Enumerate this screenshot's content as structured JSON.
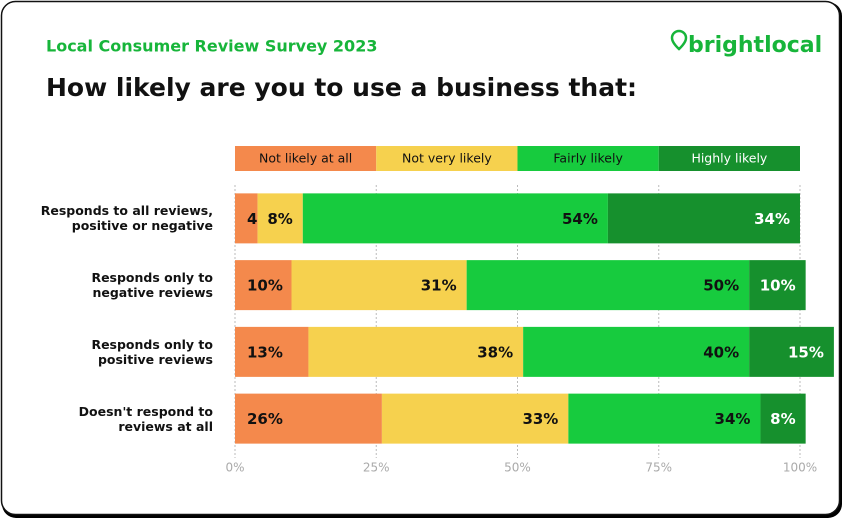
{
  "chart_data": {
    "type": "stacked-bar-horizontal",
    "header": "Local Consumer Review Survey 2023",
    "logo": "brightlocal",
    "title": "How likely are you to use a business that:",
    "categories": [
      "Responds to all reviews,\npositive or negative",
      "Responds only to\nnegative reviews",
      "Responds only to\npositive reviews",
      "Doesn't respond to\nreviews at all"
    ],
    "series": [
      {
        "name": "Not likely at all",
        "color": "#f4894c",
        "values": [
          4,
          10,
          13,
          26
        ],
        "value_labels": [
          "4%",
          "10%",
          "13%",
          "26%"
        ]
      },
      {
        "name": "Not very likely",
        "color": "#f6d14e",
        "values": [
          8,
          31,
          38,
          33
        ],
        "value_labels": [
          "8%",
          "31%",
          "38%",
          "33%"
        ]
      },
      {
        "name": "Fairly likely",
        "color": "#17cb3e",
        "values": [
          54,
          50,
          40,
          34
        ],
        "value_labels": [
          "54%",
          "50%",
          "40%",
          "34%"
        ]
      },
      {
        "name": "Highly likely",
        "color": "#16902d",
        "values": [
          34,
          10,
          15,
          8
        ],
        "value_labels": [
          "34%",
          "10%",
          "15%",
          "8%"
        ]
      }
    ],
    "xlim": [
      0,
      100
    ],
    "xticks": [
      {
        "value": 0,
        "label": "0%"
      },
      {
        "value": 25,
        "label": "25%"
      },
      {
        "value": 50,
        "label": "50%"
      },
      {
        "value": 75,
        "label": "75%"
      },
      {
        "value": 100,
        "label": "100%"
      }
    ],
    "grid": true,
    "legend": "top"
  }
}
